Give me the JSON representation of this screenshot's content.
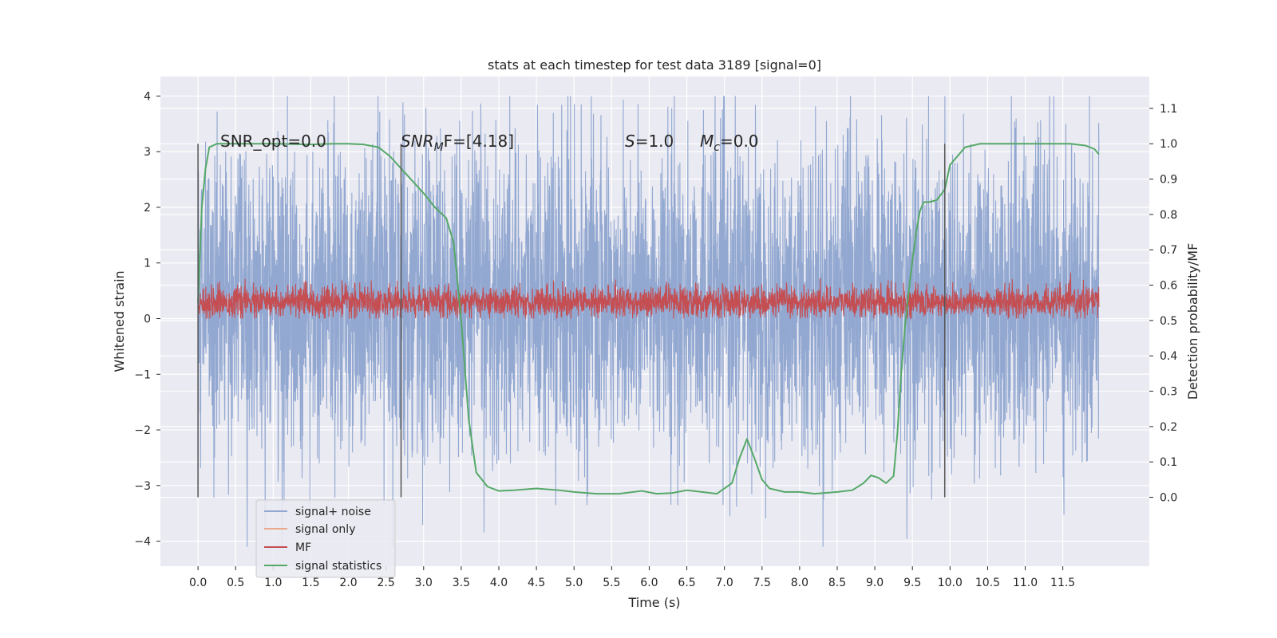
{
  "chart_data": {
    "type": "line",
    "title": "stats at each timestep for test data 3189 [signal=0]",
    "xlabel": "Time (s)",
    "ylabel_left": "Whitened strain",
    "ylabel_right": "Detection probability/MF",
    "xlim": [
      -0.5,
      12.65
    ],
    "ylim_left": [
      -4.45,
      4.35
    ],
    "ylim_right": [
      -0.195,
      1.19
    ],
    "x_ticks": [
      0.0,
      0.5,
      1.0,
      1.5,
      2.0,
      2.5,
      3.0,
      3.5,
      4.0,
      4.5,
      5.0,
      5.5,
      6.0,
      6.5,
      7.0,
      7.5,
      8.0,
      8.5,
      9.0,
      9.5,
      10.0,
      10.5,
      11.0,
      11.5
    ],
    "x_tick_labels": [
      "0.0",
      "0.5",
      "1.0",
      "1.5",
      "2.0",
      "2.5",
      "3.0",
      "3.5",
      "4.0",
      "4.5",
      "5.0",
      "5.5",
      "6.0",
      "6.5",
      "7.0",
      "7.5",
      "8.0",
      "8.5",
      "9.0",
      "9.5",
      "10.0",
      "10.5",
      "11.0",
      "11.5"
    ],
    "y_left_ticks": [
      4,
      3,
      2,
      1,
      0,
      -1,
      -2,
      -3,
      -4
    ],
    "y_left_tick_labels": [
      "4",
      "3",
      "2",
      "1",
      "0",
      "−1",
      "−2",
      "−3",
      "−4"
    ],
    "y_right_ticks": [
      1.1,
      1.0,
      0.9,
      0.8,
      0.7,
      0.6,
      0.5,
      0.4,
      0.3,
      0.2,
      0.1,
      0.0
    ],
    "y_right_tick_labels": [
      "1.1",
      "1.0",
      "0.9",
      "0.8",
      "0.7",
      "0.6",
      "0.5",
      "0.4",
      "0.3",
      "0.2",
      "0.1",
      "0.0"
    ],
    "grid": true,
    "legend_position": "lower-left",
    "annotations": {
      "snr_opt": "SNR_opt=0.0",
      "snr_mf_base": "SNR",
      "snr_mf_sub": "M",
      "snr_mf_rest": "F=[4.18]",
      "s_label": "S",
      "s_value": "=1.0",
      "mc_label": "M",
      "mc_sub": "c",
      "mc_value": "=0.0"
    },
    "vertical_markers": [
      0.0,
      2.7,
      9.93
    ],
    "series": [
      {
        "name": "signal+ noise",
        "color": "#92a8d1",
        "kind": "noise",
        "x_range": [
          0.0,
          11.98
        ],
        "typical_range": [
          -1.9,
          2.6
        ],
        "extreme_range": [
          -4.1,
          4.0
        ]
      },
      {
        "name": "signal only",
        "color": "#e9a98a",
        "values": []
      },
      {
        "name": "MF",
        "color": "#c44e52",
        "kind": "noise",
        "x_range": [
          0.0,
          11.98
        ],
        "typical_range": [
          0.05,
          0.55
        ],
        "extreme_range": [
          0.0,
          0.95
        ]
      },
      {
        "name": "signal statistics",
        "color": "#55a868",
        "axis": "right",
        "x": [
          0.0,
          0.05,
          0.1,
          0.15,
          0.25,
          0.5,
          1.0,
          1.5,
          1.8,
          2.0,
          2.2,
          2.4,
          2.55,
          2.7,
          2.85,
          3.0,
          3.15,
          3.3,
          3.4,
          3.5,
          3.6,
          3.7,
          3.85,
          4.0,
          4.2,
          4.5,
          4.8,
          5.0,
          5.3,
          5.6,
          5.9,
          6.1,
          6.3,
          6.5,
          6.7,
          6.9,
          7.1,
          7.2,
          7.3,
          7.4,
          7.5,
          7.6,
          7.8,
          8.0,
          8.2,
          8.5,
          8.7,
          8.85,
          8.95,
          9.05,
          9.15,
          9.25,
          9.3,
          9.35,
          9.4,
          9.45,
          9.5,
          9.55,
          9.6,
          9.65,
          9.72,
          9.82,
          9.93,
          10.0,
          10.2,
          10.4,
          10.6,
          10.8,
          11.0,
          11.3,
          11.6,
          11.8,
          11.92,
          11.98
        ],
        "values": [
          0.55,
          0.82,
          0.93,
          0.99,
          1.0,
          1.0,
          1.0,
          0.998,
          1.0,
          1.0,
          0.998,
          0.99,
          0.965,
          0.93,
          0.895,
          0.86,
          0.82,
          0.79,
          0.72,
          0.5,
          0.22,
          0.07,
          0.03,
          0.018,
          0.02,
          0.025,
          0.02,
          0.015,
          0.01,
          0.01,
          0.018,
          0.01,
          0.012,
          0.02,
          0.015,
          0.01,
          0.04,
          0.11,
          0.165,
          0.11,
          0.05,
          0.025,
          0.015,
          0.015,
          0.01,
          0.015,
          0.02,
          0.04,
          0.062,
          0.055,
          0.04,
          0.06,
          0.18,
          0.35,
          0.48,
          0.58,
          0.67,
          0.75,
          0.81,
          0.835,
          0.835,
          0.84,
          0.87,
          0.94,
          0.99,
          1.0,
          1.0,
          1.0,
          1.0,
          1.0,
          1.0,
          0.995,
          0.985,
          0.97
        ]
      }
    ]
  }
}
